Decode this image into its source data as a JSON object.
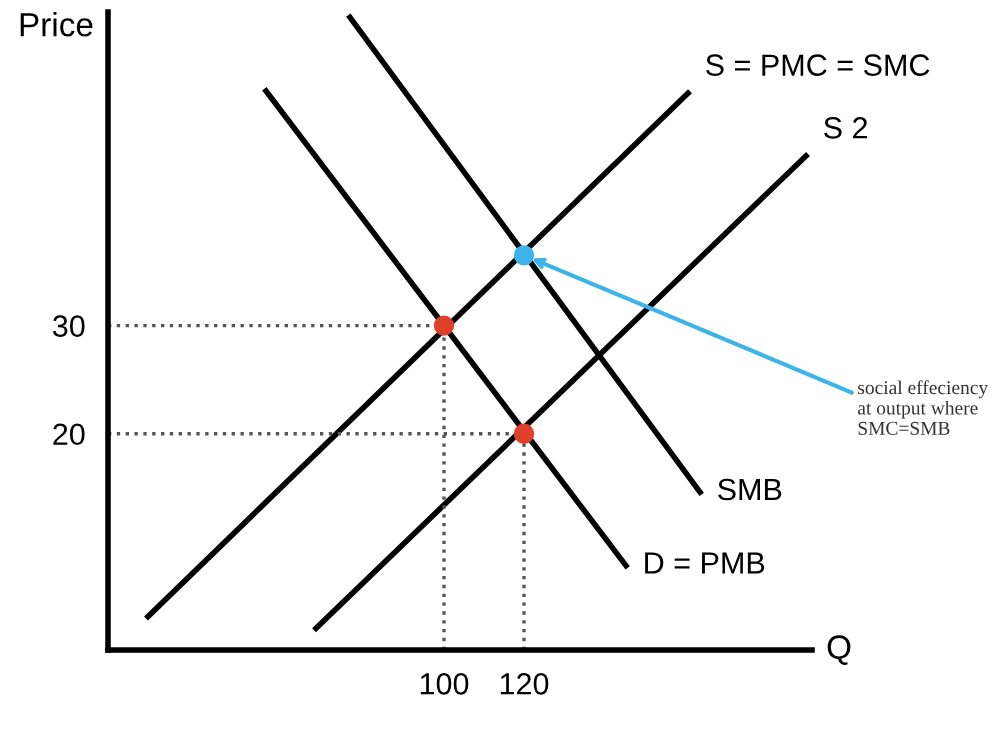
{
  "chart_data": {
    "type": "line",
    "xlabel": "Q",
    "ylabel": "Price",
    "xlim": [
      16,
      192
    ],
    "ylim": [
      0,
      59
    ],
    "xticks": [
      100,
      120
    ],
    "yticks": [
      20,
      30
    ],
    "grid": false,
    "series": [
      {
        "name": "S = PMC = SMC",
        "color": "#000000",
        "x": [
          26,
          161
        ],
        "values": [
          3.1,
          51.5
        ]
      },
      {
        "name": "S 2",
        "color": "#000000",
        "x": [
          68,
          190.5
        ],
        "values": [
          2.0,
          45.7
        ]
      },
      {
        "name": "SMB",
        "color": "#000000",
        "x": [
          76.5,
          164
        ],
        "values": [
          58.5,
          14.6
        ]
      },
      {
        "name": "D = PMB",
        "color": "#000000",
        "x": [
          55.5,
          145.5
        ],
        "values": [
          51.7,
          7.8
        ]
      },
      {
        "color": "#555555",
        "line_style": "dotted",
        "x": [
          16,
          100
        ],
        "values": [
          30,
          30
        ]
      },
      {
        "color": "#555555",
        "line_style": "dotted",
        "x": [
          100,
          100
        ],
        "values": [
          0,
          30
        ]
      },
      {
        "color": "#555555",
        "line_style": "dotted",
        "x": [
          16,
          120
        ],
        "values": [
          20,
          20
        ]
      },
      {
        "color": "#555555",
        "line_style": "dotted",
        "x": [
          120,
          120
        ],
        "values": [
          0,
          20
        ]
      },
      {
        "type": "scatter",
        "marker": "circle",
        "x": [
          100,
          120,
          120
        ],
        "values": [
          30,
          20,
          36.5
        ],
        "colors": [
          "#e0402a",
          "#e0402a",
          "#3cb4ea"
        ]
      }
    ],
    "annotations": [
      {
        "text": "social effeciency\nat output where\nSMC=SMB",
        "x": 120,
        "y": 36.5
      }
    ]
  }
}
